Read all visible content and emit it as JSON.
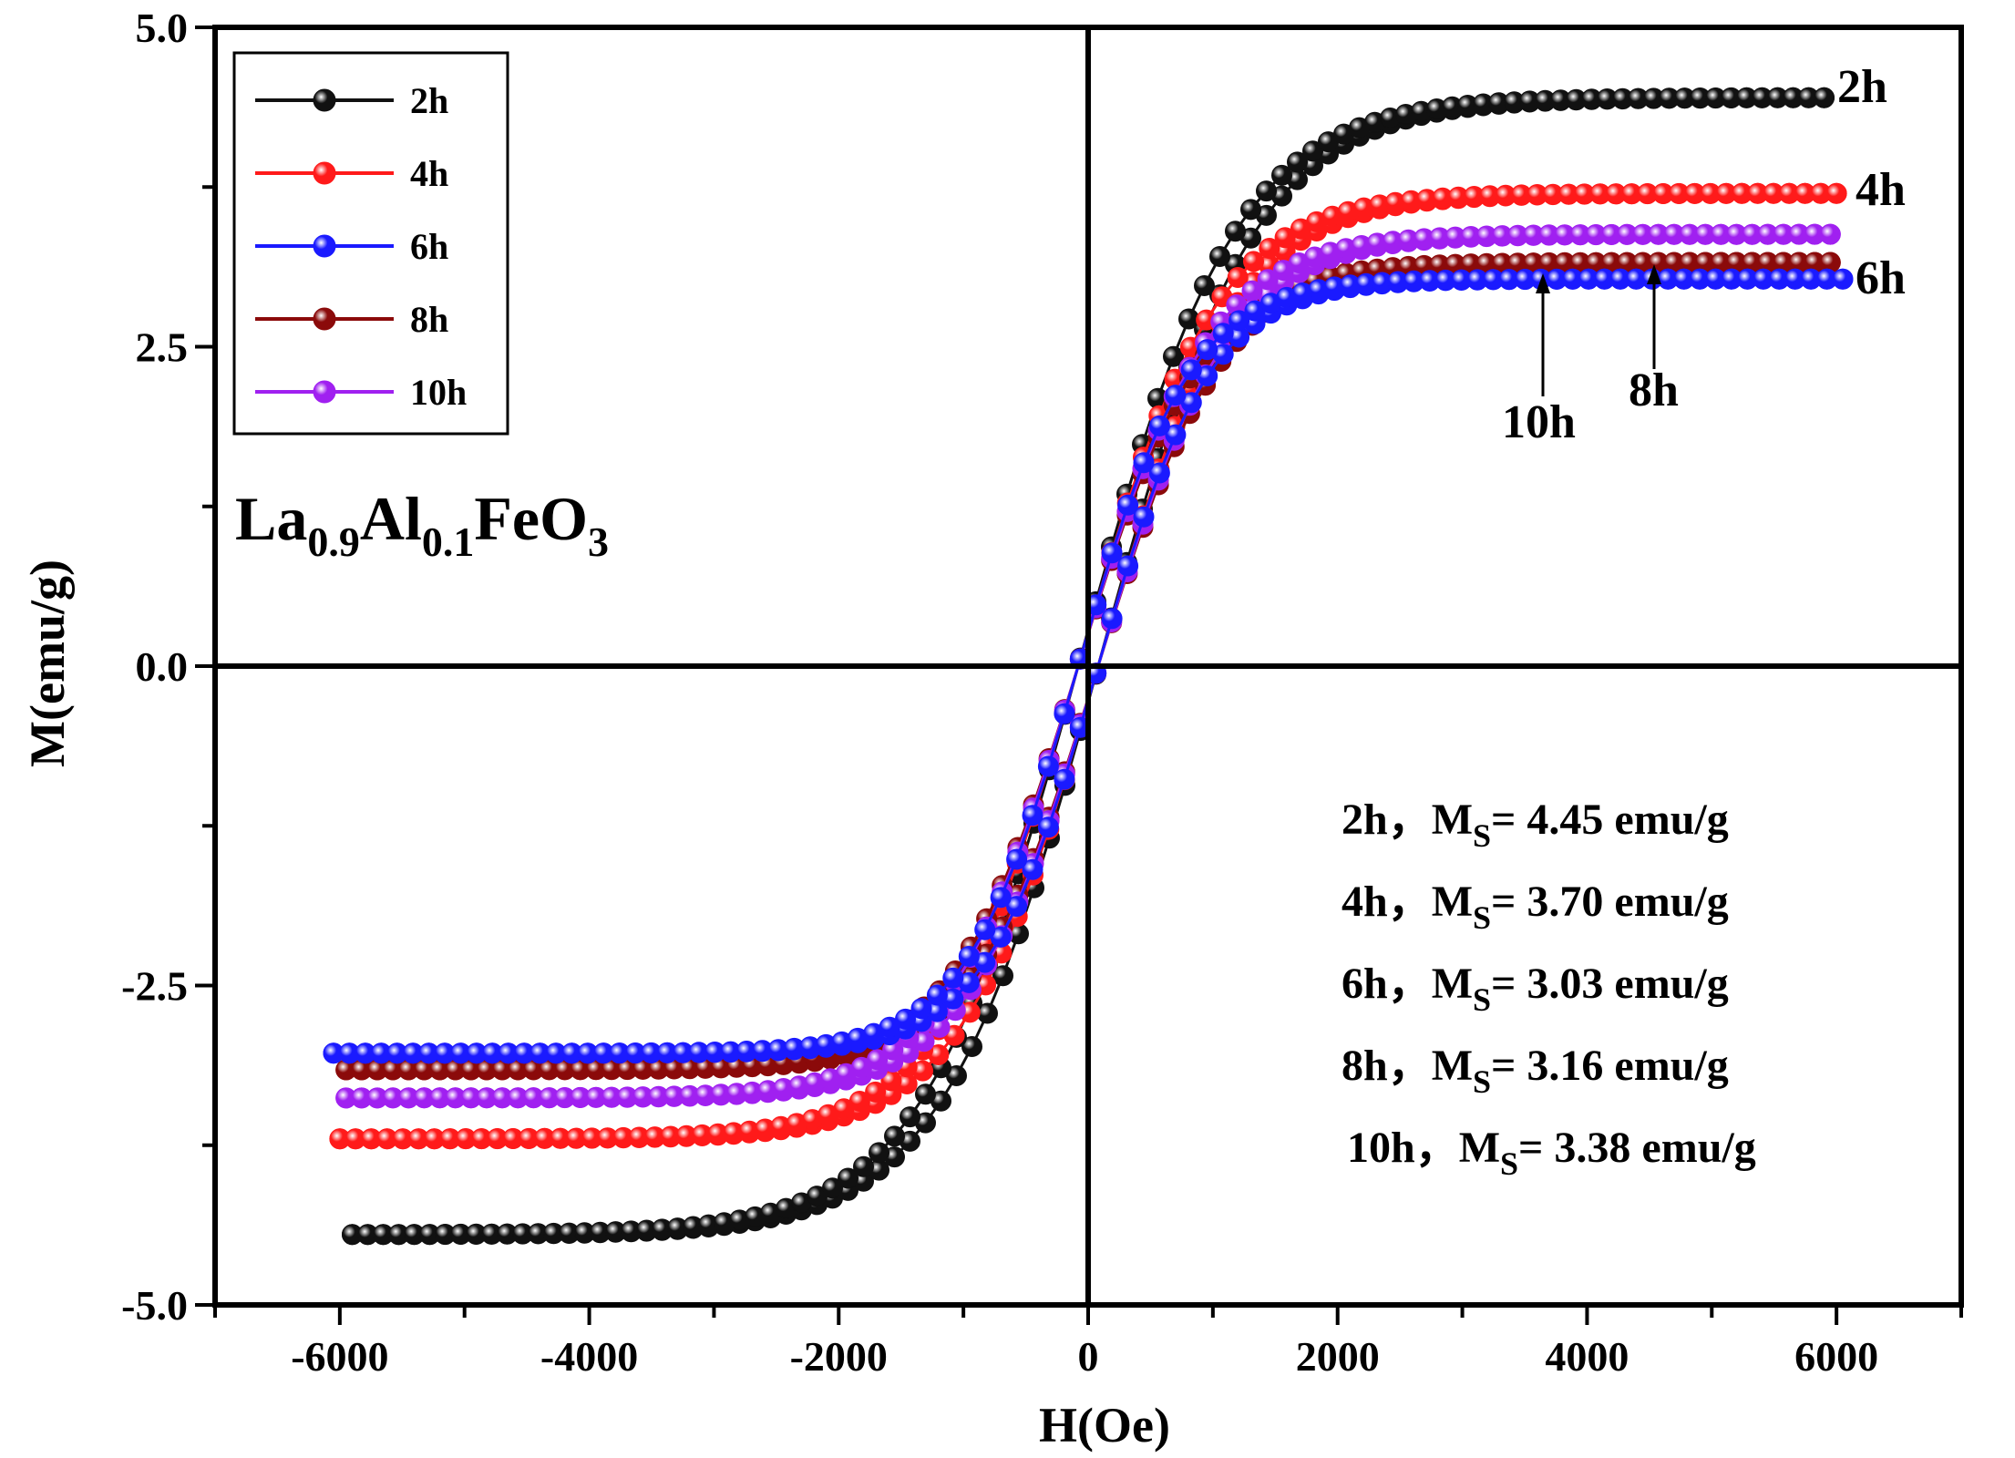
{
  "chart_data": {
    "type": "scatter",
    "title": "",
    "xlabel": "H(Oe)",
    "ylabel": "M(emu/g)",
    "xlim": [
      -7000,
      7000
    ],
    "ylim": [
      -5.0,
      5.0
    ],
    "xticks": [
      "-6000",
      "-4000",
      "-2000",
      "0",
      "2000",
      "4000",
      "6000"
    ],
    "yticks": [
      "5.0",
      "2.5",
      "0.0",
      "-2.5",
      "-5.0"
    ],
    "grid": false,
    "legend_position": "top-left",
    "sample_label": {
      "main1": "La",
      "sub1": "0.9",
      "main2": "Al",
      "sub2": "0.1",
      "main3": "FeO",
      "sub3": "3"
    },
    "series": [
      {
        "name": "2h",
        "color": "#111111",
        "ms": 4.45,
        "hmax": 5900,
        "h0": 1250,
        "hc": 80,
        "endpoint": 4.56
      },
      {
        "name": "4h",
        "color": "#ff1a1a",
        "ms": 3.7,
        "hmax": 6000,
        "h0": 1100,
        "hc": 80,
        "endpoint": 3.7
      },
      {
        "name": "6h",
        "color": "#1a1aff",
        "ms": 3.03,
        "hmax": 6050,
        "h0": 900,
        "hc": 80,
        "endpoint": 3.06
      },
      {
        "name": "8h",
        "color": "#8b0a0a",
        "ms": 3.16,
        "hmax": 5950,
        "h0": 1000,
        "hc": 80,
        "endpoint": 3.27
      },
      {
        "name": "10h",
        "color": "#a020f0",
        "ms": 3.38,
        "hmax": 5950,
        "h0": 1050,
        "hc": 80,
        "endpoint": 3.48
      }
    ],
    "curve_labels": [
      "2h",
      "4h",
      "6h",
      "10h",
      "8h"
    ],
    "ms_annotations": [
      {
        "prefix": "2h，",
        "m": "M",
        "sub": "S",
        "value": "= 4.45 emu/g"
      },
      {
        "prefix": "4h，",
        "m": "M",
        "sub": "S",
        "value": "= 3.70 emu/g"
      },
      {
        "prefix": "6h，",
        "m": "M",
        "sub": "S",
        "value": "= 3.03 emu/g"
      },
      {
        "prefix": "8h，",
        "m": "M",
        "sub": "S",
        "value": "= 3.16 emu/g"
      },
      {
        "prefix": "10h，",
        "m": "M",
        "sub": "S",
        "value": "= 3.38 emu/g"
      }
    ]
  }
}
